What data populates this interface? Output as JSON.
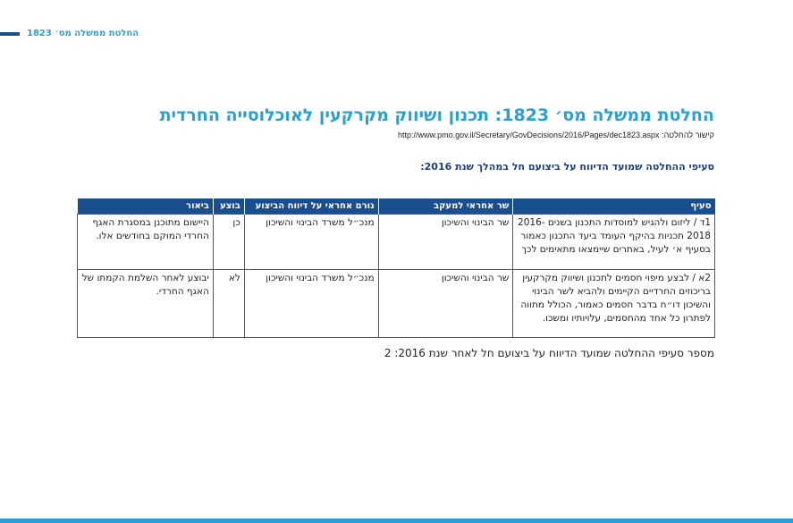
{
  "running_header": "החלטת ממשלה מס׳ 1823",
  "title": "החלטת ממשלה מס׳ 1823: תכנון ושיווק מקרקעין לאוכלוסייה החרדית",
  "link_label": "קישור להחלטה:",
  "link_url": "http://www.pmo.gov.il/Secretary/GovDecisions/2016/Pages/dec1823.aspx",
  "subheading": "סעיפי ההחלטה שמועד הדיווח על ביצועם חל במהלך שנת 2016:",
  "table": {
    "headers": [
      "סעיף",
      "שר אחראי למעקב",
      "גורם אחראי על דיווח הביצוע",
      "בוצע",
      "ביאור"
    ],
    "rows": [
      [
        "1ד / ליזום ולהגיש למוסדות התכנון בשנים 2016-2018 תכניות בהיקף העומד ביעד התכנון כאמור בסעיף א׳ לעיל, באתרים שיימצאו מתאימים לכך",
        "שר הבינוי והשיכון",
        "מנכ״ל משרד הבינוי והשיכון",
        "כן",
        "היישום מתוכנן במסגרת האגף החרדי המוקם בחודשים אלו."
      ],
      [
        "2א / לבצע מיפוי חסמים לתכנון ושיווק מקרקעין בריכוזים החרדיים הקיימים ולהביא לשר הבינוי והשיכון דו״ח בדבר חסמים כאמור, הכולל מתווה לפתרון כל אחד מהחסמים, עלויותיו ומשכו.",
        "שר הבינוי והשיכון",
        "מנכ״ל משרד הבינוי והשיכון",
        "לא",
        "יבוצע לאחר השלמת הקמתו של האגף החרדי."
      ]
    ]
  },
  "footer_text": "מספר סעיפי ההחלטה שמועד הדיווח על ביצועם חל לאחר שנת 2016: 2",
  "colors": {
    "accent": "#2a9fd6",
    "header_bg": "#1a4f8f"
  }
}
